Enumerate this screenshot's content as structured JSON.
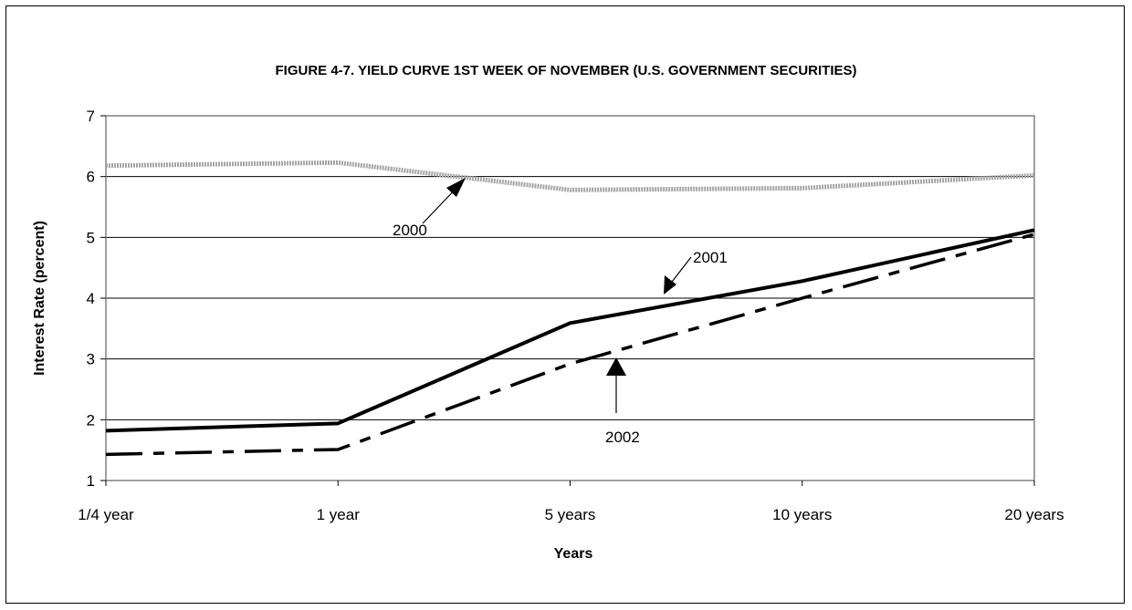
{
  "chart_data": {
    "type": "line",
    "title": "FIGURE 4-7. YIELD CURVE 1ST WEEK OF NOVEMBER (U.S. GOVERNMENT SECURITIES)",
    "xlabel": "Years",
    "ylabel": "Interest Rate (percent)",
    "categories": [
      "1/4 year",
      "1 year",
      "5 years",
      "10 years",
      "20 years"
    ],
    "ylim": [
      1,
      7
    ],
    "yticks": [
      "1",
      "2",
      "3",
      "4",
      "5",
      "6",
      "7"
    ],
    "grid": true,
    "legend": "none",
    "series": [
      {
        "name": "2000",
        "values": [
          6.18,
          6.23,
          5.78,
          5.81,
          6.02
        ],
        "color": "#a6a6a6",
        "style": "dotted-thick"
      },
      {
        "name": "2001",
        "values": [
          1.82,
          1.94,
          3.59,
          4.28,
          5.12
        ],
        "color": "#000000",
        "style": "solid"
      },
      {
        "name": "2002",
        "values": [
          1.43,
          1.51,
          2.92,
          4.0,
          5.05
        ],
        "color": "#000000",
        "style": "dash-dot"
      }
    ],
    "annotations": [
      "2000",
      "2001",
      "2002"
    ]
  }
}
